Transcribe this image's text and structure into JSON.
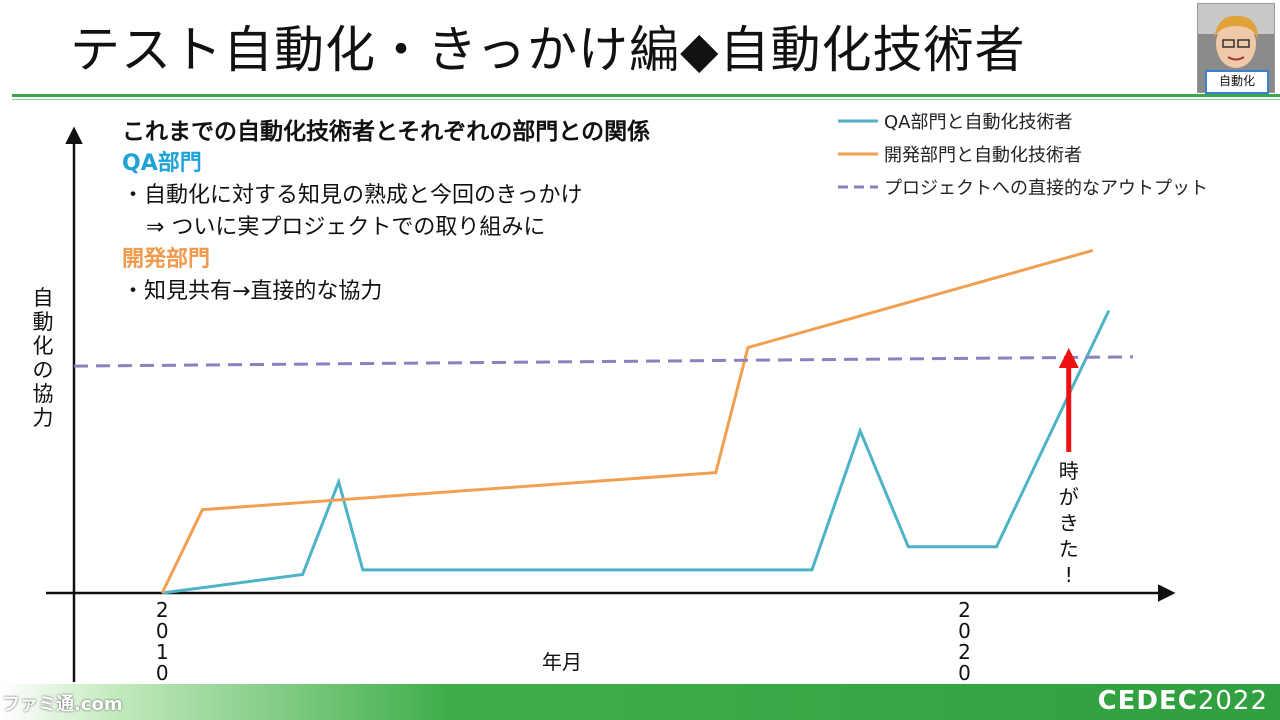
{
  "slide": {
    "title": "テスト自動化・きっかけ編◆自動化技術者",
    "camera_badge": "自動化",
    "footer_logo": "CEDEC",
    "footer_year": "2022",
    "footer_watermark": "ファミ通.com"
  },
  "notes": {
    "heading": "これまでの自動化技術者とそれぞれの部門との関係",
    "qa_title": "QA部門",
    "qa_line1": "・自動化に対する知見の熟成と今回のきっかけ",
    "qa_line2": "⇒ ついに実プロジェクトでの取り組みに",
    "dev_title": "開発部門",
    "dev_line1": "・知見共有→直接的な協力"
  },
  "chart_data": {
    "type": "line",
    "title": "",
    "xlabel": "年月",
    "ylabel": "自動化の協力",
    "x_ticks": [
      "2010",
      "2020"
    ],
    "x_tick_positions": [
      2010,
      2020
    ],
    "xlim": [
      2008.9,
      2022.5
    ],
    "ylim": [
      0,
      100
    ],
    "grid": false,
    "legend_position": "top-right",
    "annotation": "時がきた!",
    "annotation_x": 2021.3,
    "series": [
      {
        "name": "QA部門と自動化技術者",
        "color": "#4fb3c7",
        "points": [
          [
            2010,
            0
          ],
          [
            2011.75,
            4
          ],
          [
            2012.2,
            24
          ],
          [
            2012.5,
            5
          ],
          [
            2018.1,
            5
          ],
          [
            2018.7,
            35
          ],
          [
            2019.3,
            10
          ],
          [
            2020.4,
            10
          ],
          [
            2021.8,
            61
          ]
        ]
      },
      {
        "name": "開発部門と自動化技術者",
        "color": "#f0a050",
        "points": [
          [
            2010,
            0
          ],
          [
            2010.5,
            18
          ],
          [
            2016.9,
            26
          ],
          [
            2017.3,
            53
          ],
          [
            2021.6,
            74
          ]
        ]
      },
      {
        "name": "プロジェクトへの直接的なアウトプット",
        "color": "#8f7fbf",
        "dashed": true,
        "points": [
          [
            2008.9,
            49
          ],
          [
            2022.1,
            51
          ]
        ]
      }
    ]
  }
}
